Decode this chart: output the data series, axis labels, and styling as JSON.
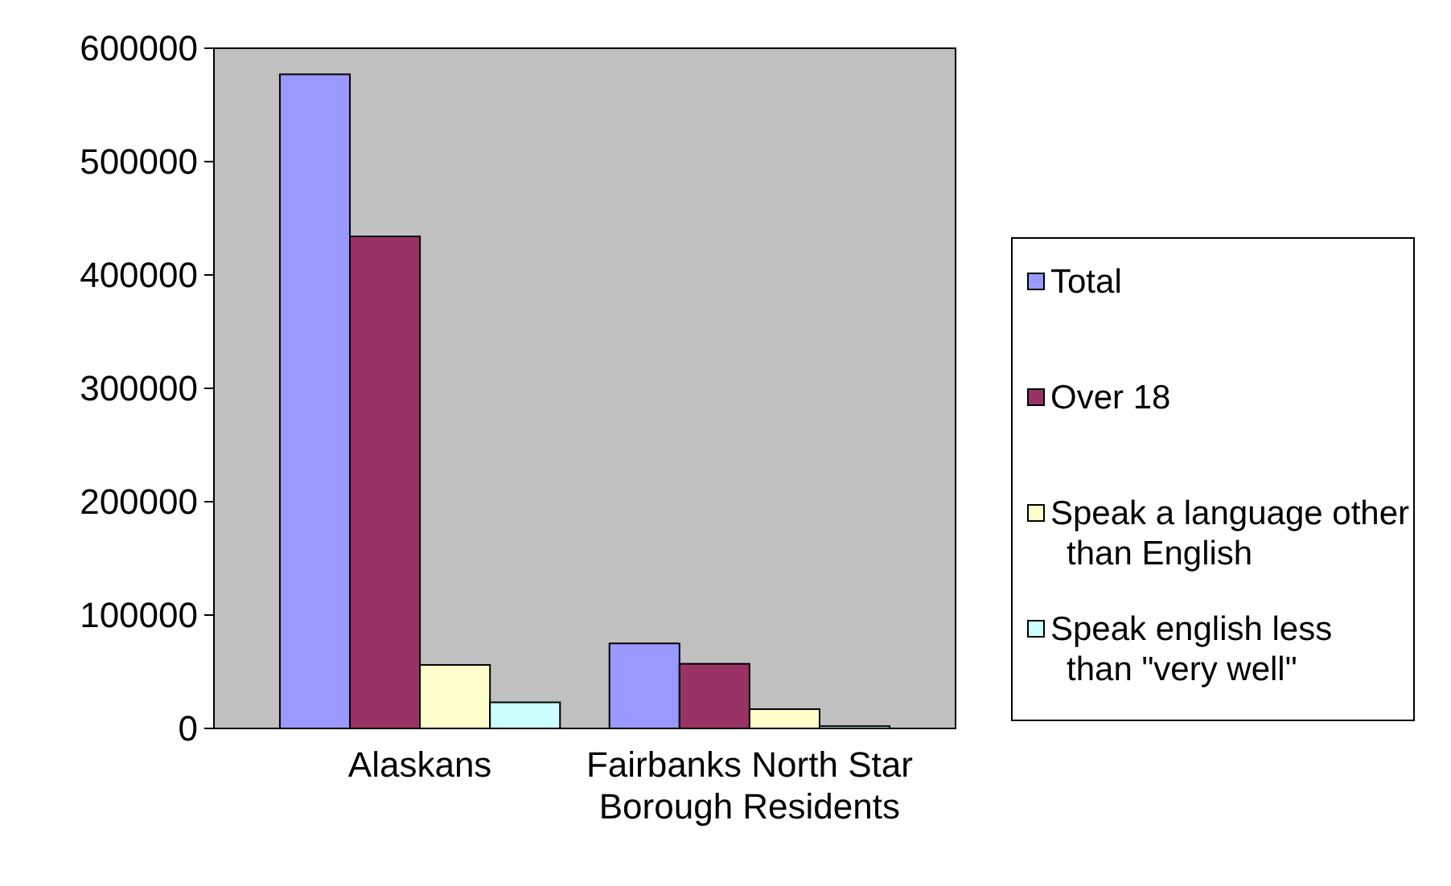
{
  "chart_data": {
    "type": "bar",
    "categories": [
      "Alaskans",
      "Fairbanks North Star Borough Residents"
    ],
    "series": [
      {
        "name": "Total",
        "color": "#9999ff",
        "values": [
          577000,
          75000
        ]
      },
      {
        "name": "Over 18",
        "color": "#993366",
        "values": [
          434000,
          57000
        ]
      },
      {
        "name": "Speak a language other than English",
        "color": "#ffffcc",
        "values": [
          56000,
          17000
        ]
      },
      {
        "name": "Speak english less than \"very well\"",
        "color": "#ccffff",
        "values": [
          23000,
          2000
        ]
      }
    ],
    "ylim": [
      0,
      600000
    ],
    "yticks": [
      0,
      100000,
      200000,
      300000,
      400000,
      500000,
      600000
    ],
    "grid": false,
    "legend": "right"
  }
}
